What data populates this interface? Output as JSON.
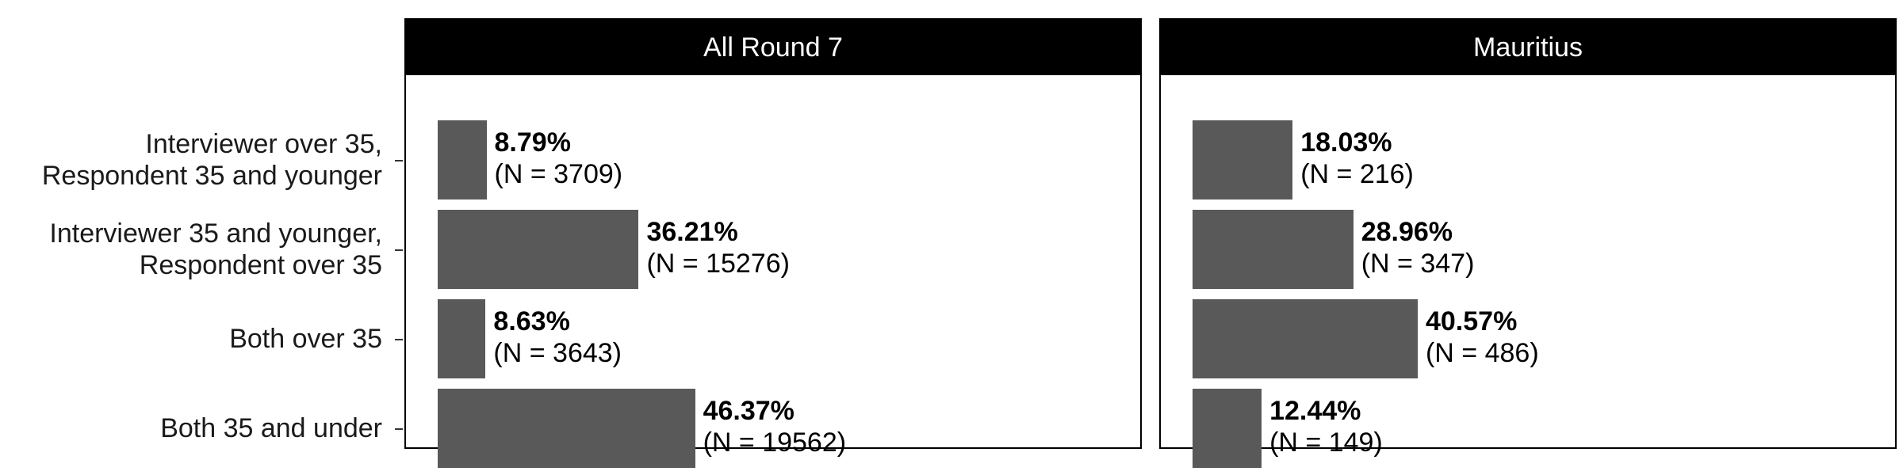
{
  "chart_data": {
    "type": "bar",
    "orientation": "horizontal",
    "categories": [
      [
        "Interviewer over 35,",
        "Respondent 35 and younger"
      ],
      [
        "Interviewer 35 and younger,",
        "Respondent over 35"
      ],
      [
        "Both over 35"
      ],
      [
        "Both 35 and under"
      ]
    ],
    "xlim": [
      0,
      100
    ],
    "panels": [
      {
        "title": "All Round 7",
        "values": [
          8.79,
          36.21,
          8.63,
          46.37
        ],
        "pct_labels": [
          "8.79%",
          "36.21%",
          "8.63%",
          "46.37%"
        ],
        "n_labels": [
          "(N = 3709)",
          "(N = 15276)",
          "(N = 3643)",
          "(N = 19562)"
        ]
      },
      {
        "title": "Mauritius",
        "values": [
          18.03,
          28.96,
          40.57,
          12.44
        ],
        "pct_labels": [
          "18.03%",
          "28.96%",
          "40.57%",
          "12.44%"
        ],
        "n_labels": [
          "(N = 216)",
          "(N = 347)",
          "(N = 486)",
          "(N = 149)"
        ]
      }
    ],
    "bar_color": "#595959",
    "strip_color": "#000000",
    "grid": false,
    "legend": "none"
  }
}
